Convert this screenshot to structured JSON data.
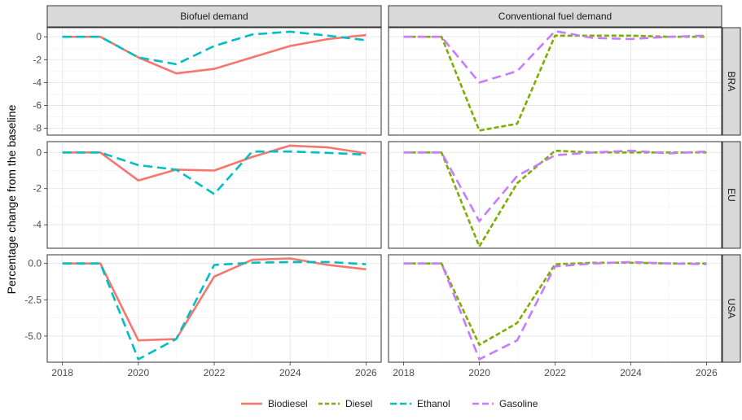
{
  "chart_data": {
    "type": "line",
    "ylabel": "Percentage change from the baseline",
    "x": [
      2018,
      2019,
      2020,
      2021,
      2022,
      2023,
      2024,
      2025,
      2026
    ],
    "x_ticks": [
      "2018",
      "2020",
      "2022",
      "2024",
      "2026"
    ],
    "columns": [
      "Biofuel demand",
      "Conventional fuel demand"
    ],
    "rows": [
      "BRA",
      "EU",
      "USA"
    ],
    "legend": {
      "position": "bottom",
      "entries": [
        "Biodiesel",
        "Diesel",
        "Ethanol",
        "Gasoline"
      ]
    },
    "colors": {
      "Biodiesel": "#f8766d",
      "Diesel": "#7cae00",
      "Ethanol": "#00bfc4",
      "Gasoline": "#c77cff"
    },
    "grid": true,
    "panels": [
      {
        "row": "BRA",
        "column": "Biofuel demand",
        "ylim": [
          -8.6,
          0.8
        ],
        "y_ticks": [
          0,
          -2,
          -4,
          -6,
          -8
        ],
        "y_tick_labels": [
          "0",
          "-2",
          "-4",
          "-6",
          "-8"
        ],
        "series": [
          {
            "name": "Biodiesel",
            "values": [
              0,
              0,
              -1.8,
              -3.2,
              -2.8,
              -1.8,
              -0.8,
              -0.2,
              0.15
            ]
          },
          {
            "name": "Ethanol",
            "values": [
              0,
              0,
              -1.8,
              -2.4,
              -0.8,
              0.2,
              0.45,
              0.1,
              -0.3
            ]
          }
        ]
      },
      {
        "row": "BRA",
        "column": "Conventional fuel demand",
        "ylim": [
          -8.6,
          0.8
        ],
        "y_ticks": [
          0,
          -2,
          -4,
          -6,
          -8
        ],
        "y_tick_labels": [
          "",
          "",
          "",
          "",
          ""
        ],
        "series": [
          {
            "name": "Diesel",
            "values": [
              0,
              0,
              -8.2,
              -7.6,
              0.1,
              0.1,
              0.1,
              0.0,
              0.0
            ]
          },
          {
            "name": "Gasoline",
            "values": [
              0,
              0,
              -4.0,
              -3.0,
              0.5,
              -0.1,
              -0.2,
              0.0,
              0.1
            ]
          }
        ]
      },
      {
        "row": "EU",
        "column": "Biofuel demand",
        "ylim": [
          -5.3,
          0.6
        ],
        "y_ticks": [
          0,
          -2,
          -4
        ],
        "y_tick_labels": [
          "0",
          "-2",
          "-4"
        ],
        "series": [
          {
            "name": "Biodiesel",
            "values": [
              0,
              0,
              -1.55,
              -0.95,
              -1.0,
              -0.25,
              0.38,
              0.28,
              -0.05
            ]
          },
          {
            "name": "Ethanol",
            "values": [
              0,
              0,
              -0.7,
              -0.95,
              -2.3,
              0.05,
              0.05,
              -0.02,
              -0.12
            ]
          }
        ]
      },
      {
        "row": "EU",
        "column": "Conventional fuel demand",
        "ylim": [
          -5.3,
          0.6
        ],
        "y_ticks": [
          0,
          -2,
          -4
        ],
        "y_tick_labels": [
          "",
          "",
          ""
        ],
        "series": [
          {
            "name": "Diesel",
            "values": [
              0,
              0,
              -5.2,
              -1.7,
              0.1,
              0.0,
              0.0,
              0.0,
              0.0
            ]
          },
          {
            "name": "Gasoline",
            "values": [
              0,
              0,
              -3.8,
              -1.3,
              -0.15,
              0.0,
              0.1,
              -0.05,
              0.05
            ]
          }
        ]
      },
      {
        "row": "USA",
        "column": "Biofuel demand",
        "ylim": [
          -6.8,
          0.6
        ],
        "y_ticks": [
          0,
          -2.5,
          -5
        ],
        "y_tick_labels": [
          "0.0",
          "-2.5",
          "-5.0"
        ],
        "series": [
          {
            "name": "Biodiesel",
            "values": [
              0,
              0,
              -5.3,
              -5.2,
              -0.9,
              0.25,
              0.35,
              -0.1,
              -0.4
            ]
          },
          {
            "name": "Ethanol",
            "values": [
              0,
              0,
              -6.6,
              -5.2,
              -0.1,
              0.05,
              0.1,
              0.1,
              -0.05
            ]
          }
        ]
      },
      {
        "row": "USA",
        "column": "Conventional fuel demand",
        "ylim": [
          -6.8,
          0.6
        ],
        "y_ticks": [
          0,
          -2.5,
          -5
        ],
        "y_tick_labels": [
          "",
          "",
          ""
        ],
        "series": [
          {
            "name": "Diesel",
            "values": [
              0,
              0,
              -5.6,
              -4.1,
              -0.05,
              0.05,
              0.05,
              0.0,
              0.0
            ]
          },
          {
            "name": "Gasoline",
            "values": [
              0,
              0,
              -6.6,
              -5.3,
              -0.2,
              0.0,
              0.1,
              0.0,
              -0.05
            ]
          }
        ]
      }
    ]
  }
}
